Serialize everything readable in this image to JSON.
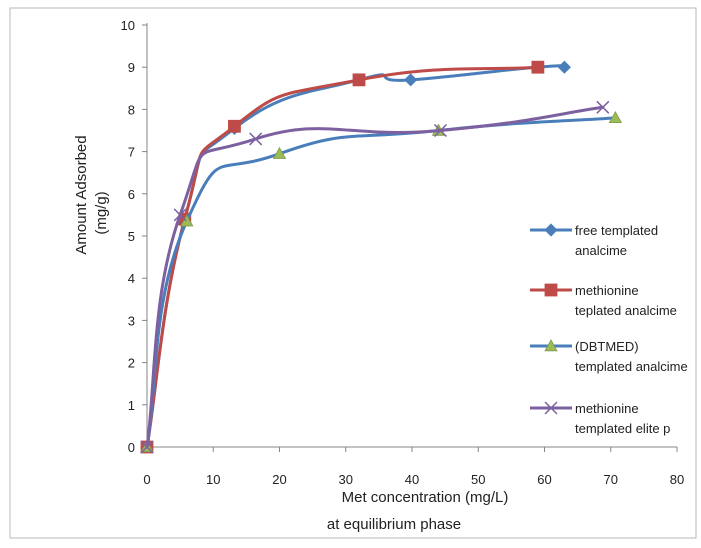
{
  "chart_data": {
    "type": "line",
    "xlabel": "Met concentration (mg/L)",
    "xlabel_line2": "at  equilibrium phase",
    "ylabel": "Amount  Adsorbed",
    "ylabel_line2": "(mg/g)",
    "xlim": [
      0,
      80
    ],
    "ylim": [
      0,
      10
    ],
    "x_ticks": [
      "0",
      "10",
      "20",
      "30",
      "40",
      "50",
      "60",
      "70",
      "80"
    ],
    "y_ticks": [
      "0",
      "1",
      "2",
      "3",
      "4",
      "5",
      "6",
      "7",
      "8",
      "9",
      "10"
    ],
    "grid": false,
    "legend_position": "right",
    "series": [
      {
        "name": "free templated analcime",
        "legend_lines": [
          "free templated",
          "analcime"
        ],
        "color": "#4a7ebb",
        "marker": "diamond",
        "points": [
          [
            0,
            0
          ],
          [
            5.7,
            5.4
          ],
          [
            13.2,
            7.55
          ],
          [
            32,
            8.7
          ],
          [
            39.8,
            8.7
          ],
          [
            58.8,
            9.0
          ],
          [
            63,
            9.0
          ]
        ]
      },
      {
        "name": "methionine teplated analcime",
        "legend_lines": [
          "methionine",
          "teplated analcime"
        ],
        "color": "#be4b48",
        "marker": "square",
        "points": [
          [
            0,
            0
          ],
          [
            5.7,
            5.4
          ],
          [
            13.2,
            7.6
          ],
          [
            32,
            8.7
          ],
          [
            59,
            9.0
          ]
        ]
      },
      {
        "name": "(DBTMED) templated analcime",
        "legend_lines": [
          "(DBTMED)",
          "templated analcime"
        ],
        "color": "#4a7ebb",
        "marker_color": "#9bbb59",
        "marker": "triangle",
        "points": [
          [
            0,
            0
          ],
          [
            6,
            5.35
          ],
          [
            20,
            6.95
          ],
          [
            44,
            7.5
          ],
          [
            70.7,
            7.8
          ]
        ]
      },
      {
        "name": "methionine templated elite p",
        "legend_lines": [
          "methionine",
          "templated elite p"
        ],
        "color": "#7d60a0",
        "marker": "x",
        "points": [
          [
            0,
            0
          ],
          [
            5,
            5.5
          ],
          [
            16.4,
            7.3
          ],
          [
            44.3,
            7.5
          ],
          [
            68.8,
            8.05
          ]
        ]
      }
    ]
  }
}
